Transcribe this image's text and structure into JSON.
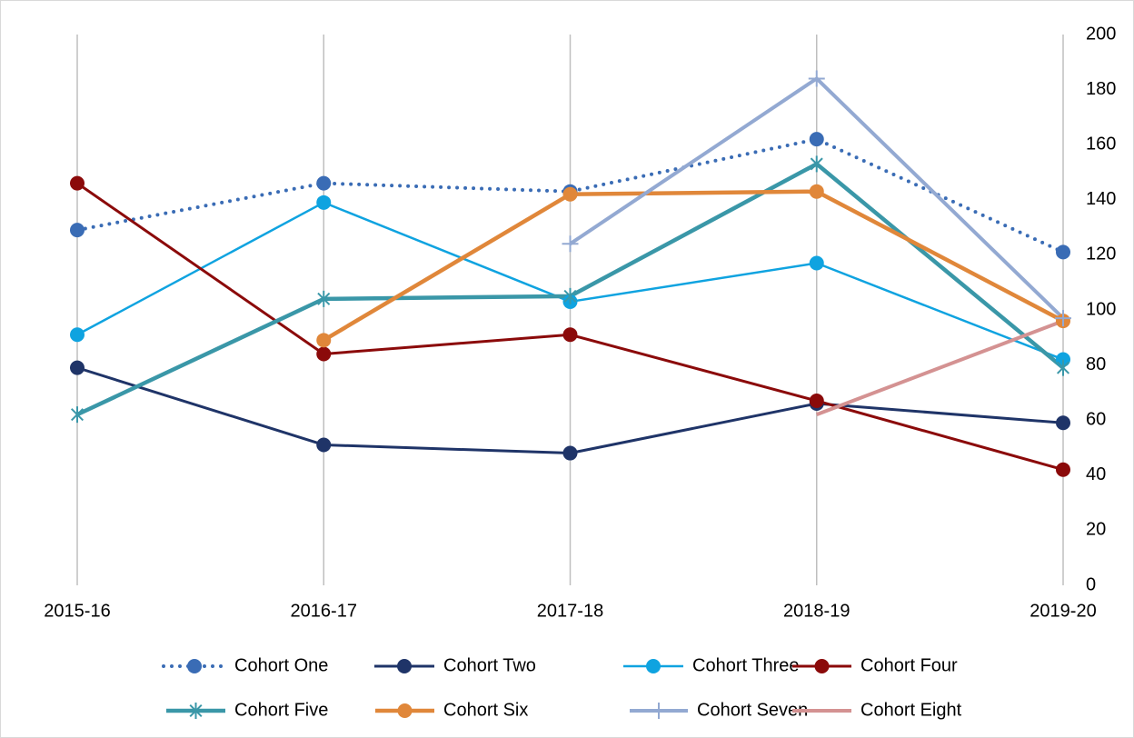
{
  "chart_data": {
    "type": "line",
    "categories": [
      "2015-16",
      "2016-17",
      "2017-18",
      "2018-19",
      "2019-20"
    ],
    "ylim": [
      0,
      200
    ],
    "yticks": [
      0,
      20,
      40,
      60,
      80,
      100,
      120,
      140,
      160,
      180,
      200
    ],
    "y_axis_side": "right",
    "grid": "vertical",
    "legend": "bottom",
    "series": [
      {
        "name": "Cohort One",
        "color": "#3a6cb5",
        "marker": "circle",
        "dash": "dotted",
        "values": [
          129,
          146,
          143,
          162,
          121
        ]
      },
      {
        "name": "Cohort Two",
        "color": "#1f3468",
        "marker": "circle",
        "values": [
          79,
          51,
          48,
          66,
          59
        ]
      },
      {
        "name": "Cohort Three",
        "color": "#0fa3e0",
        "marker": "circle",
        "values": [
          91,
          139,
          103,
          117,
          82
        ]
      },
      {
        "name": "Cohort Four",
        "color": "#8b0a0a",
        "marker": "circle",
        "values": [
          146,
          84,
          91,
          67,
          42
        ]
      },
      {
        "name": "Cohort Five",
        "color": "#3a97a8",
        "marker": "asterisk",
        "values": [
          62,
          104,
          105,
          153,
          79
        ]
      },
      {
        "name": "Cohort Six",
        "color": "#e0873a",
        "marker": "circle",
        "values": [
          null,
          89,
          142,
          143,
          96
        ]
      },
      {
        "name": "Cohort Seven",
        "color": "#93a9d2",
        "marker": "plus",
        "values": [
          null,
          null,
          124,
          184,
          97
        ]
      },
      {
        "name": "Cohort Eight",
        "color": "#d49292",
        "marker": "none",
        "values": [
          null,
          null,
          null,
          62,
          96
        ]
      }
    ]
  }
}
